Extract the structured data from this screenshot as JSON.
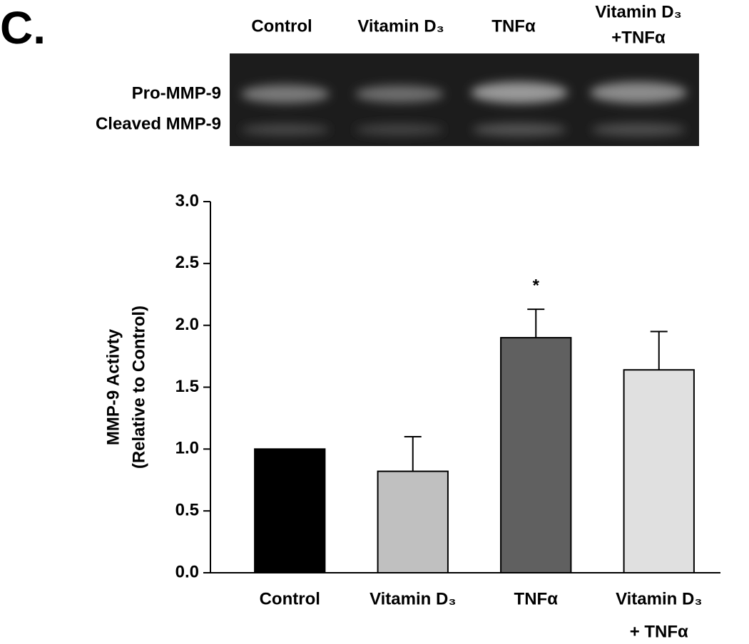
{
  "panel_label": "C.",
  "gel": {
    "lanes": [
      [
        "Control"
      ],
      [
        "Vitamin D₃"
      ],
      [
        "TNFα"
      ],
      [
        "Vitamin D₃",
        "+TNFα"
      ]
    ],
    "bands": [
      "Pro-MMP-9",
      "Cleaved MMP-9"
    ]
  },
  "chart_data": {
    "type": "bar",
    "y_label": [
      "MMP-9 Activty",
      "(Relative to Control)"
    ],
    "categories": [
      [
        "Control"
      ],
      [
        "Vitamin D₃"
      ],
      [
        "TNFα"
      ],
      [
        "Vitamin D₃",
        "+ TNFα"
      ]
    ],
    "values": [
      1.0,
      0.82,
      1.9,
      1.64
    ],
    "errors": [
      null,
      0.28,
      0.23,
      0.31
    ],
    "colors": [
      "#000000",
      "#c0c0c0",
      "#606060",
      "#e0e0e0"
    ],
    "annotations": [
      null,
      null,
      "*",
      null
    ],
    "ylim": [
      0,
      3
    ],
    "yticks": [
      {
        "value": 0,
        "label": "0.0"
      },
      {
        "value": 0.5,
        "label": "0.5"
      },
      {
        "value": 1,
        "label": "1.0"
      },
      {
        "value": 1.5,
        "label": "1.5"
      },
      {
        "value": 2,
        "label": "2.0"
      },
      {
        "value": 2.5,
        "label": "2.5"
      },
      {
        "value": 3,
        "label": "3.0"
      }
    ],
    "grid": false
  }
}
